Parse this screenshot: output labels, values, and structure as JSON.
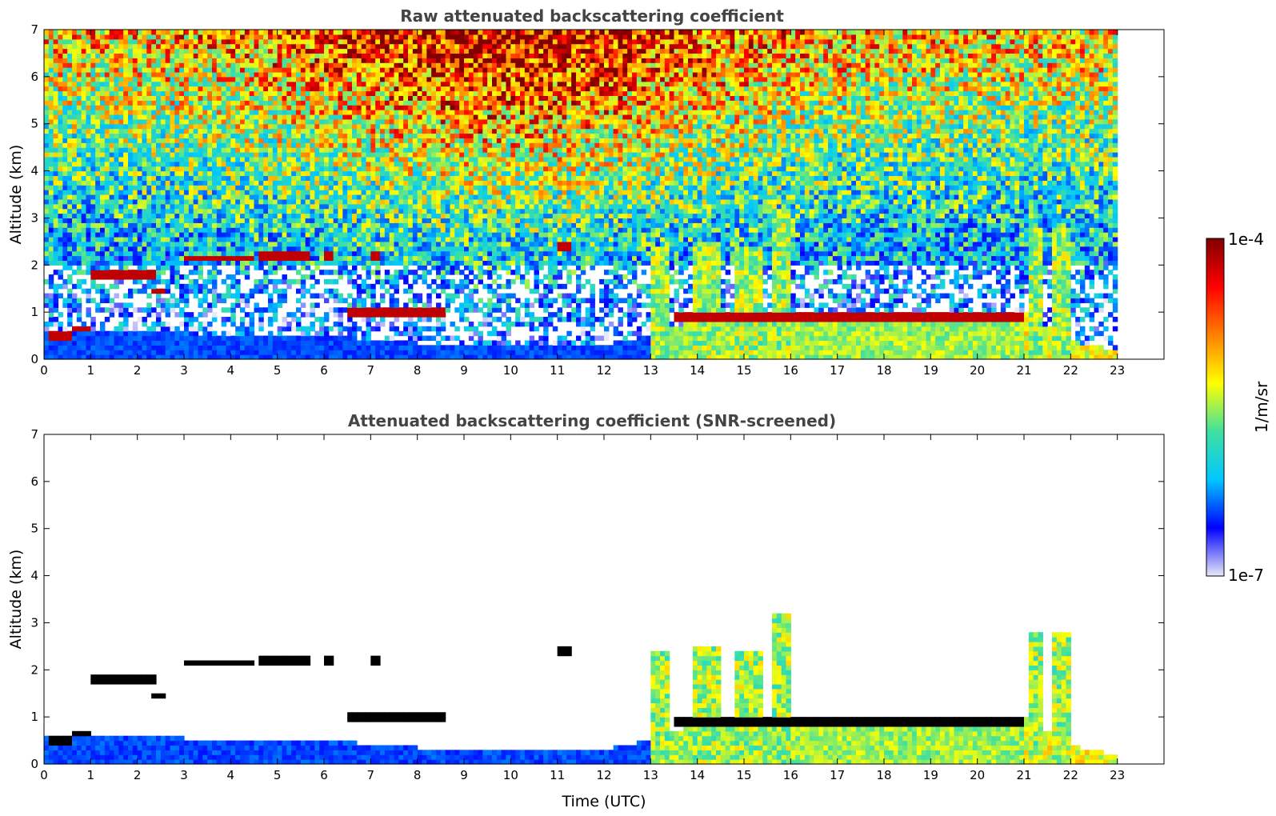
{
  "chart_data": [
    {
      "type": "heatmap",
      "title": "Raw attenuated backscattering coefficient",
      "xlabel": "",
      "ylabel": "Altitude (km)",
      "xlim": [
        0,
        24
      ],
      "ylim": [
        0,
        7
      ],
      "xticks": [
        "0",
        "1",
        "2",
        "3",
        "4",
        "5",
        "6",
        "7",
        "8",
        "9",
        "10",
        "11",
        "12",
        "13",
        "14",
        "15",
        "16",
        "17",
        "18",
        "19",
        "20",
        "21",
        "22",
        "23"
      ],
      "yticks": [
        "0",
        "1",
        "2",
        "3",
        "4",
        "5",
        "6",
        "7"
      ],
      "data_end_time": 23,
      "screened": false
    },
    {
      "type": "heatmap",
      "title": "Attenuated backscattering coefficient (SNR-screened)",
      "xlabel": "Time (UTC)",
      "ylabel": "Altitude (km)",
      "xlim": [
        0,
        24
      ],
      "ylim": [
        0,
        7
      ],
      "xticks": [
        "0",
        "1",
        "2",
        "3",
        "4",
        "5",
        "6",
        "7",
        "8",
        "9",
        "10",
        "11",
        "12",
        "13",
        "14",
        "15",
        "16",
        "17",
        "18",
        "19",
        "20",
        "21",
        "22",
        "23"
      ],
      "yticks": [
        "0",
        "1",
        "2",
        "3",
        "4",
        "5",
        "6",
        "7"
      ],
      "data_end_time": 23,
      "screened": true
    }
  ],
  "colorbar": {
    "max_label": "1e-4",
    "min_label": "1e-7",
    "unit_label": "1/m/sr",
    "scale": "log",
    "colors": [
      "#e8e8f8",
      "#0000ff",
      "#00c8ff",
      "#40e0a0",
      "#ffff00",
      "#ff8000",
      "#ff0000",
      "#800000"
    ]
  },
  "features": {
    "boundary_layer_top_km": [
      [
        0,
        0.6
      ],
      [
        2,
        0.6
      ],
      [
        4,
        0.5
      ],
      [
        6,
        0.5
      ],
      [
        8,
        0.35
      ],
      [
        10,
        0.3
      ],
      [
        12,
        0.3
      ],
      [
        13,
        0.5
      ],
      [
        14,
        0.85
      ],
      [
        16,
        0.9
      ],
      [
        18,
        0.9
      ],
      [
        20,
        0.95
      ],
      [
        21,
        1.0
      ],
      [
        22,
        0.4
      ],
      [
        23,
        0.2
      ]
    ],
    "cloud_layers": [
      {
        "t0": 0.1,
        "t1": 0.6,
        "alt": 0.5
      },
      {
        "t0": 0.6,
        "t1": 1.0,
        "alt": 0.65
      },
      {
        "t0": 1.0,
        "t1": 2.4,
        "alt": 1.8
      },
      {
        "t0": 2.3,
        "t1": 2.6,
        "alt": 1.45
      },
      {
        "t0": 3.0,
        "t1": 4.5,
        "alt": 2.15
      },
      {
        "t0": 4.6,
        "t1": 5.7,
        "alt": 2.2
      },
      {
        "t0": 6.0,
        "t1": 6.2,
        "alt": 2.2
      },
      {
        "t0": 7.0,
        "t1": 7.2,
        "alt": 2.2
      },
      {
        "t0": 6.5,
        "t1": 8.6,
        "alt": 1.0
      },
      {
        "t0": 11.0,
        "t1": 11.3,
        "alt": 2.4
      },
      {
        "t0": 13.5,
        "t1": 21.0,
        "alt": 0.9
      }
    ],
    "aerosol_columns": [
      {
        "t0": 13.0,
        "t1": 13.4,
        "top": 2.4
      },
      {
        "t0": 13.9,
        "t1": 14.5,
        "top": 2.5
      },
      {
        "t0": 14.8,
        "t1": 15.4,
        "top": 2.4
      },
      {
        "t0": 15.6,
        "t1": 16.0,
        "top": 3.2
      },
      {
        "t0": 21.1,
        "t1": 21.4,
        "top": 2.8
      },
      {
        "t0": 21.6,
        "t1": 22.0,
        "top": 2.8
      }
    ]
  }
}
